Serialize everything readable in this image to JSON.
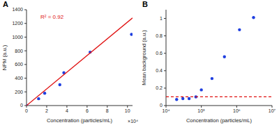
{
  "chart_data": [
    {
      "type": "scatter",
      "title": "A",
      "x_label": "Concentration (particles/mL)",
      "x_multiplier": "×10⁴",
      "y_label": "NPM (a.u.)",
      "annotation": "R² = 0.92",
      "xlim": [
        0,
        10.5
      ],
      "xticks": [
        0,
        2,
        4,
        6,
        8,
        10
      ],
      "ylim": [
        0,
        1400
      ],
      "yticks": [
        0,
        200,
        400,
        600,
        800,
        1000,
        1200,
        1400
      ],
      "grid": false,
      "series": [
        {
          "type": "scatter",
          "marker": "circle",
          "color": "#1f3fe0",
          "x": [
            0,
            1.2,
            1.8,
            3.3,
            3.7,
            6.3,
            10.4
          ],
          "values": [
            0,
            100,
            180,
            305,
            480,
            780,
            1040
          ]
        },
        {
          "type": "line",
          "line_style": "solid",
          "color": "#e01010",
          "x": [
            0,
            10.5
          ],
          "values": [
            0,
            1280
          ]
        }
      ]
    },
    {
      "type": "scatter",
      "title": "B",
      "x_label": "Concentration (particles/mL)",
      "y_label": "Mean background (a.u.)",
      "log": "x",
      "xlim": [
        10000,
        10000000
      ],
      "xticks": [
        {
          "value": 10000,
          "label": "10⁴"
        },
        {
          "value": 100000,
          "label": "10⁵"
        },
        {
          "value": 1000000,
          "label": "10⁶"
        },
        {
          "value": 10000000,
          "label": "10⁷"
        }
      ],
      "ylim": [
        0,
        1.1
      ],
      "yticks": [
        0,
        0.2,
        0.4,
        0.6,
        0.8,
        1
      ],
      "grid": false,
      "series": [
        {
          "type": "scatter",
          "marker": "circle",
          "color": "#1f3fe0",
          "x": [
            20000,
            30000,
            45000,
            70000,
            100000,
            200000,
            450000,
            1200000,
            3000000
          ],
          "values": [
            0.07,
            0.08,
            0.08,
            0.1,
            0.18,
            0.31,
            0.56,
            0.87,
            1.01
          ]
        },
        {
          "type": "line",
          "line_style": "dashed",
          "color": "#e01010",
          "x": [
            10000,
            10000000
          ],
          "values": [
            0.1,
            0.1
          ]
        }
      ]
    }
  ]
}
